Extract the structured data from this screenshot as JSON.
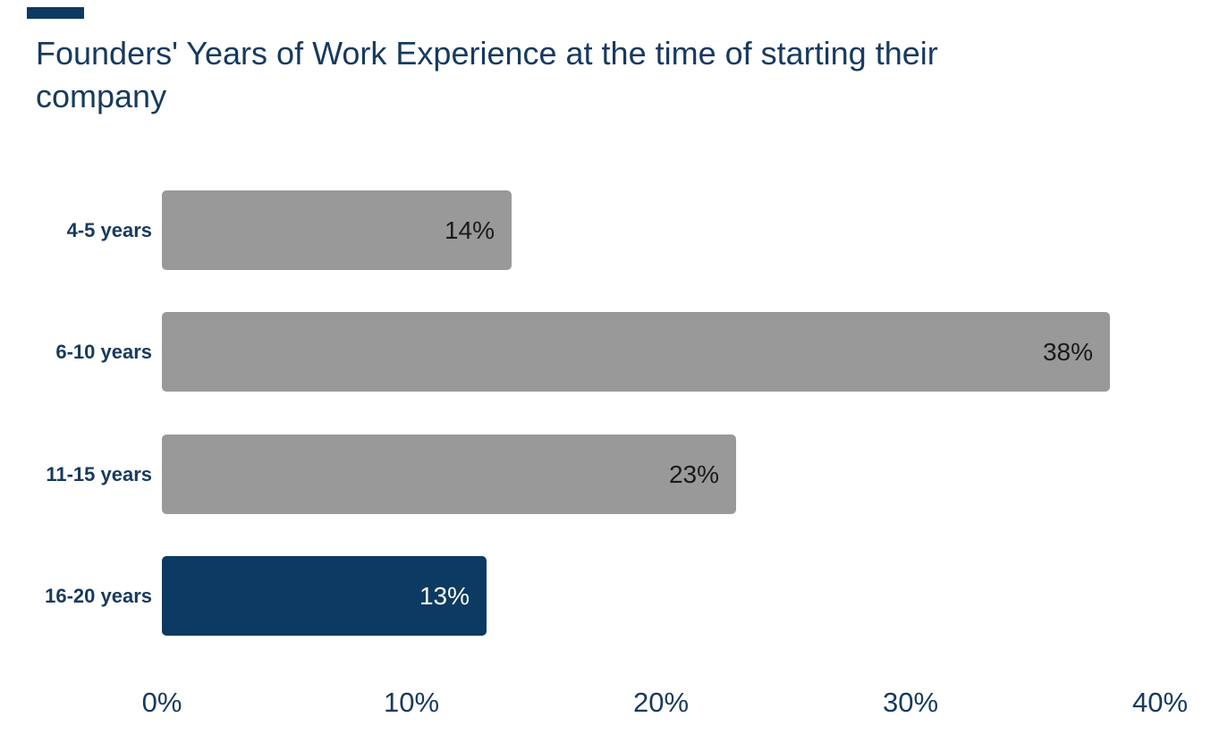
{
  "header": {
    "line1": "Founders' Years of Work Experience at the time of starting their",
    "line2": "company"
  },
  "decoration": {
    "corner_mark_color": "#0d3a62"
  },
  "chart_data": {
    "type": "bar",
    "orientation": "horizontal",
    "title": "Founders' Years of Work Experience at the time of starting their company",
    "categories": [
      "4-5 years",
      "6-10 years",
      "11-15 years",
      "16-20 years"
    ],
    "values": [
      14,
      38,
      23,
      13
    ],
    "value_labels": [
      "14%",
      "38%",
      "23%",
      "13%"
    ],
    "x_tick_labels": [
      "0%",
      "10%",
      "20%",
      "30%",
      "40%"
    ],
    "xlim": [
      0,
      40
    ],
    "xlabel": "",
    "ylabel": "",
    "grid": false,
    "legend": false,
    "highlight_index": 3,
    "layout_hint": "category labels at left, value labels inside right end of bars, percent ticks along bottom",
    "colors": {
      "background": "#ffffff",
      "bar_default": "#999999",
      "bar_highlight": "#0d3a62",
      "title_text": "#173a5f",
      "category_text": "#173a5f",
      "tick_text": "#173a5f",
      "value_text_on_default": "#1a1a1a",
      "value_text_on_highlight": "#ffffff"
    }
  }
}
